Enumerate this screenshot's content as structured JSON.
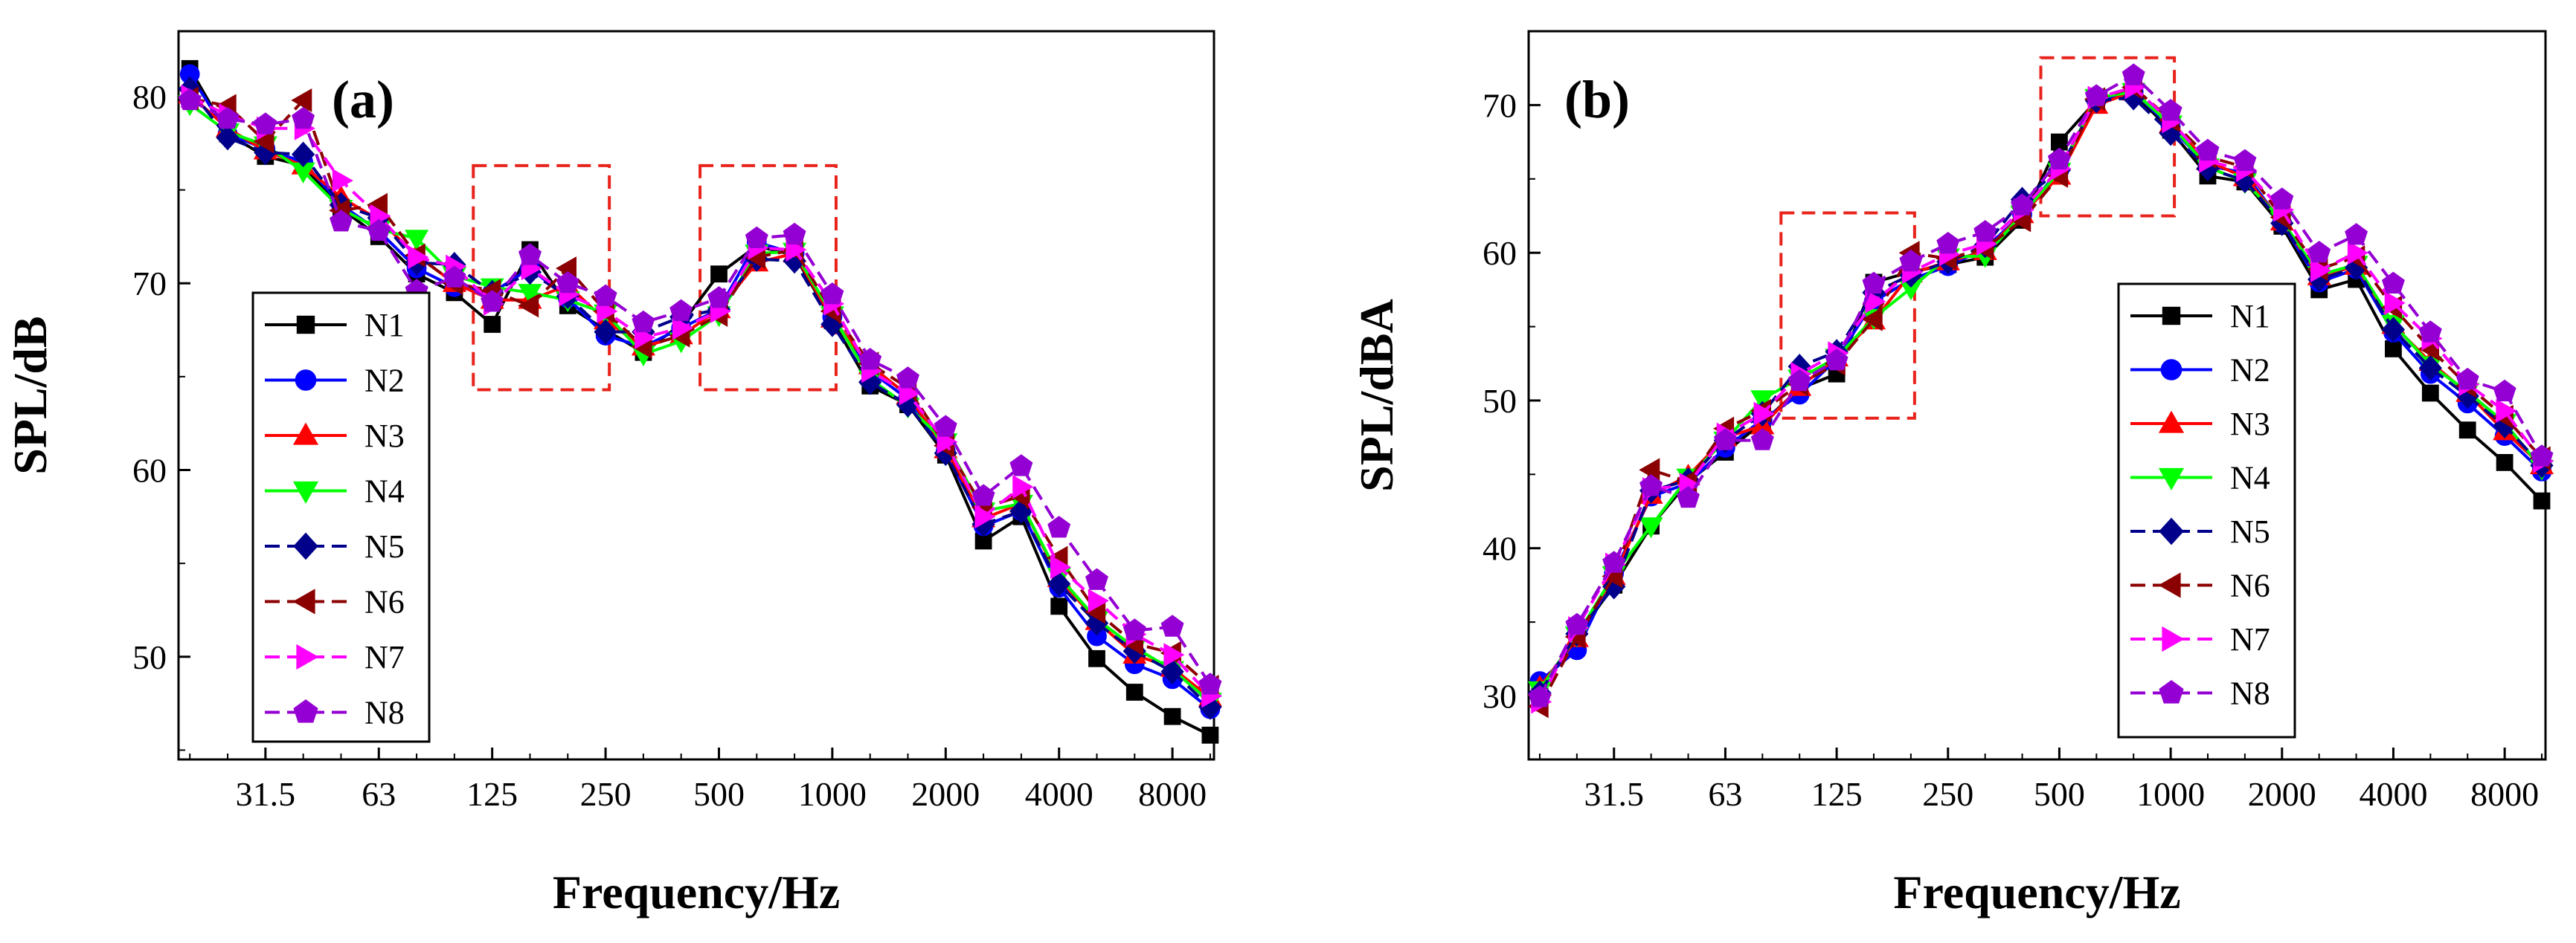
{
  "chart_data": [
    {
      "type": "line",
      "panel_label": "(a)",
      "xlabel": "Frequency/Hz",
      "ylabel": "SPL/dB",
      "x_scale": "one-third-octave band index",
      "x_positions": [
        20,
        25,
        31.5,
        40,
        50,
        63,
        80,
        100,
        125,
        160,
        200,
        250,
        315,
        400,
        500,
        630,
        800,
        1000,
        1250,
        1600,
        2000,
        2500,
        3150,
        4000,
        5000,
        6300,
        8000,
        10000
      ],
      "x_tick_labels": [
        "31.5",
        "63",
        "125",
        "250",
        "500",
        "1000",
        "2000",
        "4000",
        "8000"
      ],
      "y_tick_labels": [
        "50",
        "60",
        "70",
        "80"
      ],
      "ylim": [
        44.5,
        83.5
      ],
      "highlight_regions": [
        {
          "x_from": 125,
          "x_to": 250,
          "y_from": 64.3,
          "y_to": 76.3
        },
        {
          "x_from": 500,
          "x_to": 1000,
          "y_from": 64.3,
          "y_to": 76.3
        }
      ],
      "legend": [
        "N1",
        "N2",
        "N3",
        "N4",
        "N5",
        "N6",
        "N7",
        "N8"
      ],
      "series": [
        {
          "name": "N1",
          "color": "#000000",
          "marker": "square",
          "dash": "solid",
          "values": [
            81.5,
            78.0,
            76.8,
            76.3,
            74.0,
            72.5,
            70.5,
            69.5,
            67.8,
            71.8,
            68.8,
            67.5,
            66.3,
            67.8,
            70.5,
            72.0,
            71.5,
            68.0,
            64.5,
            63.5,
            60.8,
            56.2,
            57.5,
            52.7,
            49.9,
            48.1,
            46.8,
            45.8
          ]
        },
        {
          "name": "N2",
          "color": "#0000ff",
          "marker": "circle",
          "dash": "solid",
          "values": [
            81.2,
            78.0,
            77.2,
            76.5,
            74.2,
            72.8,
            70.8,
            69.8,
            69.5,
            70.8,
            69.2,
            67.2,
            66.6,
            67.6,
            68.6,
            72.2,
            71.6,
            68.2,
            65.3,
            63.8,
            61.0,
            57.0,
            57.8,
            53.7,
            51.1,
            49.6,
            48.8,
            47.2
          ]
        },
        {
          "name": "N3",
          "color": "#ff0000",
          "marker": "triangle-up",
          "dash": "solid",
          "values": [
            80.1,
            78.3,
            77.1,
            76.3,
            74.6,
            73.4,
            71.5,
            70.0,
            69.1,
            69.1,
            69.9,
            68.0,
            66.6,
            67.2,
            68.6,
            71.1,
            71.6,
            68.1,
            65.6,
            64.0,
            61.1,
            57.4,
            58.2,
            54.2,
            51.9,
            50.1,
            49.4,
            47.8
          ]
        },
        {
          "name": "N4",
          "color": "#00ff00",
          "marker": "triangle-down",
          "dash": "solid",
          "values": [
            79.6,
            78.1,
            77.4,
            76.0,
            74.0,
            72.9,
            72.4,
            70.4,
            69.8,
            69.5,
            69.1,
            68.4,
            66.2,
            66.9,
            68.3,
            71.6,
            71.7,
            68.3,
            64.9,
            63.4,
            61.5,
            57.8,
            58.2,
            54.3,
            52.0,
            50.5,
            49.3,
            47.6
          ]
        },
        {
          "name": "N5",
          "color": "#00008b",
          "marker": "diamond",
          "dash": "dashed",
          "values": [
            80.4,
            77.8,
            77.0,
            76.9,
            74.2,
            73.5,
            71.1,
            71.0,
            69.5,
            70.6,
            69.3,
            67.4,
            67.4,
            68.2,
            68.6,
            71.3,
            71.2,
            67.8,
            64.7,
            63.5,
            60.9,
            57.1,
            57.8,
            53.9,
            51.8,
            50.3,
            49.2,
            47.3
          ]
        },
        {
          "name": "N6",
          "color": "#8b0000",
          "marker": "triangle-left",
          "dash": "dashed",
          "values": [
            79.9,
            79.5,
            77.6,
            79.8,
            73.9,
            74.2,
            71.5,
            70.0,
            69.6,
            68.8,
            70.8,
            68.5,
            66.6,
            67.2,
            68.3,
            71.4,
            71.8,
            68.5,
            65.7,
            64.4,
            61.3,
            58.0,
            58.6,
            55.3,
            52.4,
            50.7,
            50.2,
            48.4
          ]
        },
        {
          "name": "N7",
          "color": "#ff00ff",
          "marker": "triangle-right",
          "dash": "dashed",
          "values": [
            80.0,
            79.0,
            78.3,
            78.3,
            75.5,
            73.6,
            71.4,
            70.9,
            68.9,
            70.8,
            69.4,
            68.5,
            67.1,
            67.6,
            68.5,
            71.9,
            71.8,
            68.9,
            65.3,
            64.1,
            61.5,
            57.5,
            59.1,
            54.8,
            53.0,
            51.2,
            50.1,
            47.9
          ]
        },
        {
          "name": "N8",
          "color": "#9400d3",
          "marker": "pentagon",
          "dash": "dashed",
          "values": [
            79.8,
            78.8,
            78.5,
            78.8,
            73.3,
            72.8,
            69.6,
            70.3,
            69.0,
            71.5,
            70.0,
            69.3,
            67.9,
            68.5,
            69.2,
            72.4,
            72.6,
            69.4,
            65.9,
            64.9,
            62.3,
            58.6,
            60.2,
            56.9,
            54.1,
            51.4,
            51.6,
            48.5
          ]
        }
      ]
    },
    {
      "type": "line",
      "panel_label": "(b)",
      "xlabel": "Frequency/Hz",
      "ylabel": "SPL/dBA",
      "x_scale": "one-third-octave band index",
      "x_positions": [
        20,
        25,
        31.5,
        40,
        50,
        63,
        80,
        100,
        125,
        160,
        200,
        250,
        315,
        400,
        500,
        630,
        800,
        1000,
        1250,
        1600,
        2000,
        2500,
        3150,
        4000,
        5000,
        6300,
        8000,
        10000
      ],
      "x_tick_labels": [
        "31.5",
        "63",
        "125",
        "250",
        "500",
        "1000",
        "2000",
        "4000",
        "8000"
      ],
      "y_tick_labels": [
        "30",
        "40",
        "50",
        "60",
        "70"
      ],
      "ylim": [
        25.7,
        75.0
      ],
      "highlight_regions": [
        {
          "x_from": 100,
          "x_to": 200,
          "y_from": 48.8,
          "y_to": 62.7
        },
        {
          "x_from": 500,
          "x_to": 1000,
          "y_from": 62.5,
          "y_to": 73.2
        }
      ],
      "legend": [
        "N1",
        "N2",
        "N3",
        "N4",
        "N5",
        "N6",
        "N7",
        "N8"
      ],
      "series": [
        {
          "name": "N1",
          "color": "#000000",
          "marker": "square",
          "dash": "solid",
          "values": [
            30.5,
            34.0,
            37.5,
            41.5,
            44.5,
            46.5,
            48.5,
            50.8,
            51.8,
            58.0,
            58.7,
            59.2,
            59.7,
            62.2,
            67.5,
            70.3,
            70.8,
            68.3,
            65.2,
            64.8,
            61.8,
            57.5,
            58.2,
            53.5,
            50.5,
            48.0,
            45.8,
            43.2
          ]
        },
        {
          "name": "N2",
          "color": "#0000ff",
          "marker": "circle",
          "dash": "solid",
          "values": [
            31.0,
            33.1,
            38.3,
            43.5,
            44.4,
            46.8,
            48.7,
            50.4,
            52.8,
            56.7,
            58.2,
            59.1,
            60.3,
            62.6,
            65.6,
            70.3,
            70.9,
            68.5,
            65.9,
            65.4,
            62.0,
            58.0,
            58.9,
            54.6,
            51.8,
            49.8,
            47.6,
            45.2
          ]
        },
        {
          "name": "N3",
          "color": "#ff0000",
          "marker": "triangle-up",
          "dash": "solid",
          "values": [
            30.6,
            33.9,
            38.1,
            43.6,
            44.9,
            47.5,
            48.3,
            50.9,
            52.9,
            55.4,
            58.6,
            59.4,
            60.1,
            62.6,
            65.2,
            70.0,
            70.9,
            68.7,
            66.2,
            65.1,
            62.1,
            58.4,
            59.1,
            55.1,
            52.6,
            50.5,
            47.9,
            45.6
          ]
        },
        {
          "name": "N4",
          "color": "#00ff00",
          "marker": "triangle-down",
          "dash": "solid",
          "values": [
            30.4,
            34.1,
            38.2,
            41.5,
            44.8,
            47.3,
            50.1,
            51.5,
            52.9,
            55.6,
            57.6,
            59.7,
            59.8,
            62.6,
            65.5,
            70.5,
            70.9,
            68.7,
            65.8,
            64.8,
            62.2,
            58.5,
            59.2,
            55.2,
            52.4,
            50.6,
            48.5,
            45.4
          ]
        },
        {
          "name": "N5",
          "color": "#00008b",
          "marker": "diamond",
          "dash": "dashed",
          "values": [
            30.2,
            34.2,
            37.4,
            43.9,
            44.6,
            47.3,
            49.1,
            52.3,
            53.3,
            57.3,
            58.5,
            59.4,
            60.5,
            63.6,
            65.6,
            70.3,
            70.5,
            68.1,
            65.7,
            64.9,
            62.0,
            58.2,
            59.0,
            54.8,
            52.2,
            50.3,
            48.3,
            45.6
          ]
        },
        {
          "name": "N6",
          "color": "#8b0000",
          "marker": "triangle-left",
          "dash": "dashed",
          "values": [
            29.3,
            34.0,
            38.1,
            45.3,
            44.5,
            48.1,
            49.3,
            51.1,
            52.5,
            55.5,
            60.0,
            59.6,
            60.3,
            62.2,
            65.2,
            70.4,
            71.2,
            69.0,
            66.5,
            65.8,
            62.4,
            58.9,
            59.7,
            56.3,
            53.5,
            51.0,
            48.9,
            46.1
          ]
        },
        {
          "name": "N7",
          "color": "#ff00ff",
          "marker": "triangle-right",
          "dash": "dashed",
          "values": [
            29.6,
            34.6,
            38.9,
            44.0,
            44.3,
            47.7,
            49.1,
            51.8,
            53.2,
            56.7,
            58.7,
            59.9,
            60.6,
            62.9,
            65.7,
            70.5,
            71.2,
            68.9,
            66.2,
            65.6,
            62.9,
            58.8,
            60.0,
            56.6,
            54.2,
            51.1,
            49.3,
            45.9
          ]
        },
        {
          "name": "N8",
          "color": "#9400d3",
          "marker": "pentagon",
          "dash": "dashed",
          "values": [
            29.9,
            34.8,
            39.0,
            44.2,
            43.4,
            47.3,
            47.3,
            51.3,
            52.7,
            57.9,
            59.4,
            60.6,
            61.4,
            63.2,
            66.3,
            70.6,
            72.0,
            69.6,
            66.9,
            66.2,
            63.6,
            60.0,
            61.2,
            57.9,
            54.6,
            51.4,
            50.6,
            46.2
          ]
        }
      ]
    }
  ]
}
